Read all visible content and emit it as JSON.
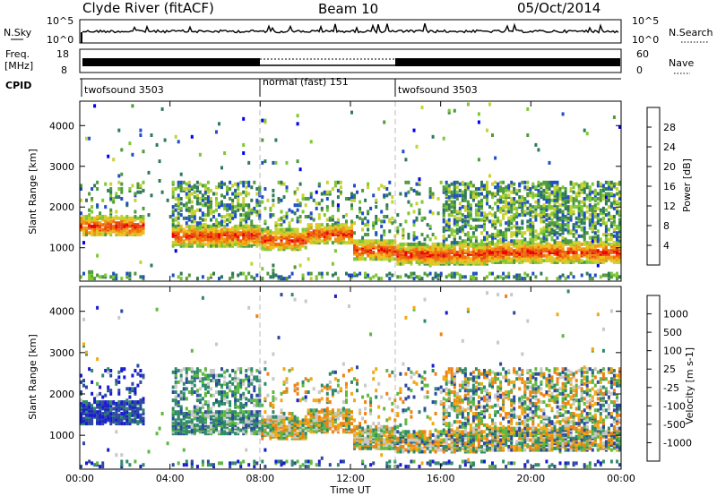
{
  "header": {
    "station": "Clyde River (fitACF)",
    "beam": "Beam 10",
    "date": "05/Oct/2014"
  },
  "nsky_panel": {
    "left_label": "N.Sky",
    "left_ticks": [
      "10^5",
      "10^0"
    ],
    "right_ticks": [
      "10^5",
      "10^0"
    ],
    "right_label": "N.Search"
  },
  "freq_panel": {
    "left_label_top": "Freq.",
    "left_label_unit": "[MHz]",
    "left_ticks": [
      "18",
      "8"
    ],
    "right_ticks": [
      "60",
      "0"
    ],
    "right_label": "Nave"
  },
  "cpid_panel": {
    "label": "CPID",
    "segments": [
      {
        "name": "twofsound 3503",
        "start": 0,
        "end": 8
      },
      {
        "name": "normal (fast) 151",
        "start": 8,
        "end": 14
      },
      {
        "name": "twofsound 3503",
        "start": 14,
        "end": 24
      }
    ]
  },
  "chart_data": [
    {
      "type": "heatmap",
      "name": "power",
      "ylabel": "Slant Range [km]",
      "ylim": [
        180,
        4600
      ],
      "xlim": [
        0,
        24
      ],
      "yticks": [
        "1000",
        "2000",
        "3000",
        "4000"
      ],
      "colorbar": {
        "label": "Power [dB]",
        "ticks": [
          "28",
          "24",
          "20",
          "16",
          "12",
          "8",
          "4"
        ],
        "colors": [
          "#0000f0",
          "#1f4fc8",
          "#2f7a5a",
          "#4f9a3c",
          "#7ec832",
          "#c8d232",
          "#f0be1e",
          "#f09614",
          "#f06e0a",
          "#e64614",
          "#f00000"
        ]
      }
    },
    {
      "type": "heatmap",
      "name": "velocity",
      "ylabel": "Slant Range [km]",
      "ylim": [
        180,
        4600
      ],
      "xlim": [
        0,
        24
      ],
      "yticks": [
        "1000",
        "2000",
        "3000",
        "4000"
      ],
      "colorbar": {
        "label": "Velocity [m s-1]",
        "ticks": [
          "1000",
          "500",
          "100",
          "25",
          "-25",
          "-100",
          "-500",
          "-1000"
        ],
        "colors": [
          "#1a1ad2",
          "#2c4a9e",
          "#2e8a6a",
          "#5fb840",
          "#c8c8c8",
          "#c8c8c8",
          "#f0aa14",
          "#f08214",
          "#f05014",
          "#e61414"
        ]
      }
    }
  ],
  "x_axis": {
    "label": "Time UT",
    "ticks": [
      "00:00",
      "04:00",
      "08:00",
      "12:00",
      "16:00",
      "20:00",
      "00:00"
    ]
  }
}
